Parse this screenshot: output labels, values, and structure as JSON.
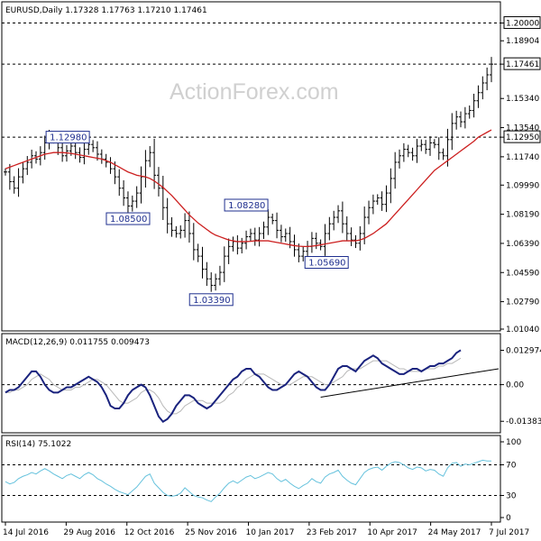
{
  "header": {
    "main": "EURUSD,Daily   1.17328 1.17763 1.17210 1.17461",
    "macd": "MACD(12,26,9) 0.011755 0.009473",
    "rsi": "RSI(14) 75.1022"
  },
  "watermark": "ActionForex.com",
  "colors": {
    "price": "#000000",
    "ma": "#cc1f1f",
    "macd_line": "#1a237e",
    "macd_signal": "#b8b8b8",
    "rsi_line": "#66c2dd",
    "label": "#1f2f8f",
    "dashed": "#000000"
  },
  "chart_data": [
    {
      "type": "ohlc",
      "panel": "price",
      "ylim": [
        1.0104,
        1.212
      ],
      "yticks": [
        "1.20000",
        "1.18904",
        "1.17461",
        "1.15340",
        "1.13540",
        "1.12950",
        "1.11740",
        "1.09990",
        "1.08190",
        "1.06390",
        "1.04590",
        "1.02790",
        "1.01040"
      ],
      "yticks_values": [
        1.2,
        1.18904,
        1.17461,
        1.1534,
        1.1354,
        1.1295,
        1.1174,
        1.0999,
        1.0819,
        1.0639,
        1.0459,
        1.0279,
        1.0104
      ],
      "highlighted_ticks": [
        "1.20000",
        "1.17461",
        "1.12950"
      ],
      "hlines": [
        1.2,
        1.1746,
        1.1295
      ],
      "closes": [
        1.108,
        1.102,
        1.098,
        1.105,
        1.11,
        1.114,
        1.118,
        1.116,
        1.12,
        1.126,
        1.13,
        1.128,
        1.123,
        1.118,
        1.121,
        1.124,
        1.12,
        1.117,
        1.122,
        1.125,
        1.123,
        1.119,
        1.116,
        1.114,
        1.11,
        1.105,
        1.098,
        1.092,
        1.087,
        1.09,
        1.095,
        1.105,
        1.115,
        1.12,
        1.106,
        1.098,
        1.086,
        1.076,
        1.072,
        1.07,
        1.072,
        1.078,
        1.07,
        1.06,
        1.056,
        1.048,
        1.042,
        1.038,
        1.042,
        1.046,
        1.056,
        1.062,
        1.065,
        1.061,
        1.064,
        1.068,
        1.07,
        1.066,
        1.07,
        1.074,
        1.08,
        1.078,
        1.072,
        1.068,
        1.07,
        1.065,
        1.06,
        1.056,
        1.059,
        1.062,
        1.067,
        1.064,
        1.062,
        1.07,
        1.076,
        1.08,
        1.084,
        1.076,
        1.07,
        1.066,
        1.064,
        1.07,
        1.08,
        1.086,
        1.09,
        1.092,
        1.088,
        1.095,
        1.104,
        1.114,
        1.118,
        1.122,
        1.12,
        1.118,
        1.124,
        1.125,
        1.122,
        1.126,
        1.125,
        1.12,
        1.118,
        1.128,
        1.138,
        1.142,
        1.139,
        1.144,
        1.146,
        1.152,
        1.157,
        1.163,
        1.168,
        1.1746
      ],
      "ma": [
        1.11,
        1.111,
        1.112,
        1.113,
        1.114,
        1.115,
        1.116,
        1.117,
        1.118,
        1.119,
        1.1195,
        1.12,
        1.12,
        1.12,
        1.1198,
        1.1195,
        1.119,
        1.1185,
        1.118,
        1.1175,
        1.117,
        1.1165,
        1.116,
        1.115,
        1.114,
        1.1125,
        1.111,
        1.1095,
        1.108,
        1.107,
        1.106,
        1.1055,
        1.105,
        1.104,
        1.1025,
        1.1005,
        1.0985,
        1.096,
        1.0935,
        1.0905,
        1.0875,
        1.0845,
        1.0815,
        1.079,
        1.0765,
        1.0745,
        1.0725,
        1.0705,
        1.069,
        1.068,
        1.067,
        1.066,
        1.0655,
        1.065,
        1.065,
        1.065,
        1.0652,
        1.0655,
        1.0655,
        1.0655,
        1.0655,
        1.065,
        1.0645,
        1.064,
        1.0635,
        1.063,
        1.0625,
        1.0622,
        1.062,
        1.062,
        1.0622,
        1.0625,
        1.063,
        1.0635,
        1.064,
        1.0645,
        1.065,
        1.0655,
        1.0655,
        1.0655,
        1.0655,
        1.066,
        1.067,
        1.0685,
        1.07,
        1.072,
        1.074,
        1.076,
        1.079,
        1.082,
        1.085,
        1.088,
        1.091,
        1.094,
        1.097,
        1.1,
        1.103,
        1.106,
        1.109,
        1.111,
        1.113,
        1.115,
        1.117,
        1.119,
        1.121,
        1.123,
        1.125,
        1.127,
        1.1295,
        1.131,
        1.1325,
        1.134
      ],
      "annotations": [
        {
          "text": "1.12980",
          "i": 20,
          "value": 1.1298
        },
        {
          "text": "1.08500",
          "i": 28,
          "value": 1.085
        },
        {
          "text": "1.03390",
          "i": 47,
          "value": 1.0339
        },
        {
          "text": "1.08280",
          "i": 55,
          "value": 1.0828
        },
        {
          "text": "1.05690",
          "i": 68,
          "value": 1.0569
        }
      ]
    },
    {
      "type": "line",
      "panel": "macd",
      "ylim": [
        -0.0175,
        0.0145
      ],
      "yticks": [
        "0.012974",
        "0.00",
        "-0.013836"
      ],
      "yticks_values": [
        0.012974,
        0.0,
        -0.013836
      ],
      "macd": [
        -0.003,
        -0.002,
        -0.002,
        -0.001,
        0.001,
        0.003,
        0.005,
        0.005,
        0.003,
        0.0,
        -0.002,
        -0.003,
        -0.003,
        -0.002,
        -0.001,
        -0.001,
        0.0,
        0.001,
        0.002,
        0.003,
        0.002,
        0.001,
        -0.001,
        -0.004,
        -0.008,
        -0.009,
        -0.009,
        -0.007,
        -0.004,
        -0.002,
        -0.001,
        0.0,
        -0.001,
        -0.004,
        -0.008,
        -0.012,
        -0.014,
        -0.013,
        -0.011,
        -0.008,
        -0.006,
        -0.004,
        -0.004,
        -0.005,
        -0.007,
        -0.008,
        -0.009,
        -0.008,
        -0.006,
        -0.004,
        -0.002,
        0.0,
        0.002,
        0.003,
        0.005,
        0.006,
        0.006,
        0.004,
        0.003,
        0.001,
        -0.001,
        -0.002,
        -0.002,
        -0.001,
        0.0,
        0.002,
        0.004,
        0.005,
        0.004,
        0.003,
        0.001,
        -0.001,
        -0.002,
        -0.002,
        0.0,
        0.003,
        0.006,
        0.007,
        0.007,
        0.006,
        0.005,
        0.007,
        0.009,
        0.01,
        0.011,
        0.01,
        0.008,
        0.007,
        0.006,
        0.005,
        0.004,
        0.004,
        0.005,
        0.006,
        0.006,
        0.005,
        0.006,
        0.007,
        0.007,
        0.008,
        0.008,
        0.009,
        0.01,
        0.012,
        0.013
      ],
      "signal": [
        -0.003,
        -0.003,
        -0.002,
        -0.002,
        -0.001,
        0.0,
        0.002,
        0.003,
        0.004,
        0.003,
        0.002,
        0.0,
        -0.001,
        -0.002,
        -0.002,
        -0.002,
        -0.001,
        -0.001,
        0.0,
        0.001,
        0.002,
        0.002,
        0.001,
        0.0,
        -0.002,
        -0.004,
        -0.006,
        -0.007,
        -0.007,
        -0.006,
        -0.005,
        -0.003,
        -0.002,
        -0.002,
        -0.003,
        -0.005,
        -0.008,
        -0.01,
        -0.011,
        -0.011,
        -0.01,
        -0.008,
        -0.007,
        -0.006,
        -0.006,
        -0.006,
        -0.007,
        -0.007,
        -0.007,
        -0.007,
        -0.006,
        -0.004,
        -0.003,
        -0.001,
        0.0,
        0.002,
        0.003,
        0.004,
        0.004,
        0.004,
        0.003,
        0.002,
        0.001,
        0.0,
        0.0,
        0.0,
        0.001,
        0.002,
        0.003,
        0.003,
        0.003,
        0.002,
        0.001,
        0.0,
        0.0,
        0.001,
        0.002,
        0.003,
        0.005,
        0.006,
        0.006,
        0.006,
        0.007,
        0.008,
        0.009,
        0.009,
        0.009,
        0.009,
        0.008,
        0.007,
        0.006,
        0.006,
        0.005,
        0.005,
        0.005,
        0.005,
        0.006,
        0.006,
        0.006,
        0.007,
        0.007,
        0.008,
        0.008,
        0.009,
        0.01
      ],
      "trendline": [
        {
          "i": 72,
          "value": -0.002
        },
        {
          "i": 110,
          "value": 0.006
        }
      ]
    },
    {
      "type": "line",
      "panel": "rsi",
      "ylim": [
        0,
        100
      ],
      "yticks": [
        "100",
        "70",
        "30",
        "0"
      ],
      "yticks_values": [
        100,
        70,
        30,
        0
      ],
      "hlines": [
        70,
        30
      ],
      "values": [
        48,
        45,
        47,
        52,
        55,
        57,
        60,
        58,
        62,
        65,
        62,
        58,
        55,
        52,
        56,
        58,
        55,
        52,
        57,
        60,
        57,
        52,
        49,
        45,
        42,
        38,
        35,
        33,
        31,
        36,
        41,
        48,
        55,
        58,
        46,
        40,
        34,
        30,
        29,
        30,
        33,
        40,
        35,
        30,
        28,
        27,
        24,
        22,
        28,
        33,
        40,
        46,
        49,
        46,
        50,
        54,
        56,
        52,
        54,
        57,
        60,
        58,
        52,
        48,
        51,
        46,
        42,
        39,
        43,
        46,
        52,
        48,
        46,
        54,
        58,
        60,
        63,
        55,
        50,
        46,
        44,
        52,
        60,
        64,
        66,
        67,
        63,
        68,
        72,
        74,
        73,
        70,
        66,
        64,
        67,
        66,
        62,
        64,
        63,
        58,
        55,
        66,
        72,
        73,
        68,
        71,
        70,
        72,
        74,
        76,
        75,
        75
      ],
      "xticks": [
        "14 Jul 2016",
        "29 Aug 2016",
        "12 Oct 2016",
        "25 Nov 2016",
        "10 Jan 2017",
        "23 Feb 2017",
        "10 Apr 2017",
        "24 May 2017",
        "7 Jul 2017"
      ],
      "xticks_i": [
        0,
        14,
        28,
        42,
        56,
        70,
        84,
        98,
        112
      ]
    }
  ]
}
